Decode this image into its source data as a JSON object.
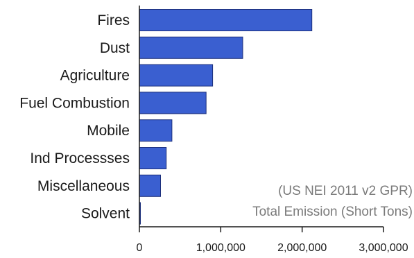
{
  "chart_data": {
    "type": "bar",
    "orientation": "horizontal",
    "categories": [
      "Fires",
      "Dust",
      "Agriculture",
      "Fuel Combustion",
      "Mobile",
      "Ind Processses",
      "Miscellaneous",
      "Solvent"
    ],
    "values": [
      2120000,
      1270000,
      900000,
      820000,
      400000,
      330000,
      260000,
      10000
    ],
    "title": "",
    "xlabel": "",
    "ylabel": "",
    "xlim": [
      0,
      3000000
    ],
    "xticks": [
      "0",
      "1,000,000",
      "2,000,000",
      "3,000,000"
    ],
    "xtick_values": [
      0,
      1000000,
      2000000,
      3000000
    ],
    "annotations": [
      "(US NEI 2011 v2 GPR)",
      "Total Emission (Short Tons)"
    ],
    "grid": false,
    "legend": "none",
    "colors": {
      "bar": "#3a5fd0",
      "bar_stroke": "#1c2f7a",
      "axis": "#1a1a1a",
      "annotation": "#7a7a7a"
    }
  }
}
